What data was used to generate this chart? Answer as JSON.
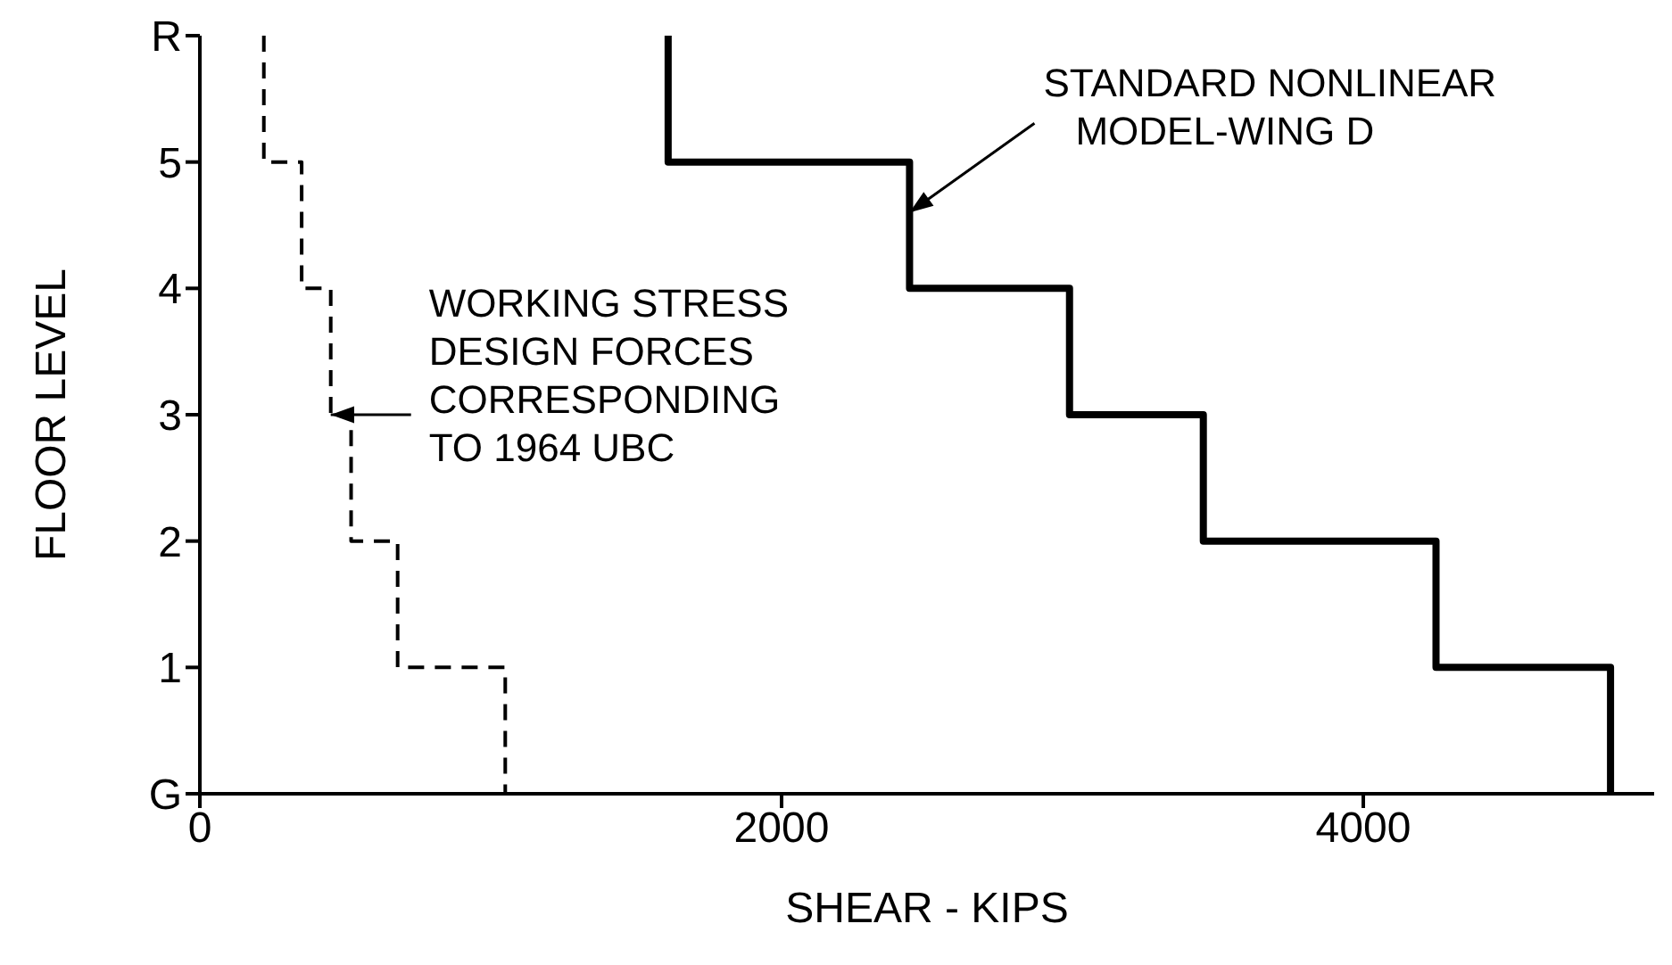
{
  "chart_data": {
    "type": "line",
    "xlabel": "SHEAR - KIPS",
    "ylabel": "FLOOR LEVEL",
    "xlim": [
      0,
      5000
    ],
    "xticks": [
      0,
      2000,
      4000
    ],
    "ylim": [
      0,
      6
    ],
    "yticks": [
      {
        "value": 0,
        "label": "G"
      },
      1,
      2,
      3,
      4,
      5,
      {
        "value": 6,
        "label": "R"
      }
    ],
    "marker": "none",
    "series": [
      {
        "color": "#000000",
        "line_style": "solid",
        "x": [
          1610,
          1610,
          2440,
          2440,
          2990,
          2990,
          3450,
          3450,
          4250,
          4250,
          4850,
          4850
        ],
        "values": [
          6,
          5,
          5,
          4,
          4,
          3,
          3,
          2,
          2,
          1,
          1,
          0
        ]
      },
      {
        "color": "#000000",
        "line_style": "dashed",
        "x": [
          220,
          220,
          350,
          350,
          450,
          450,
          520,
          520,
          680,
          680,
          1050,
          1050
        ],
        "values": [
          6,
          5,
          5,
          4,
          4,
          3,
          3,
          2,
          2,
          1,
          1,
          0
        ]
      }
    ],
    "annotations": [
      {
        "text": "STANDARD NONLINEAR\nMODEL-WING D",
        "x": 2440,
        "y": 4.6
      },
      {
        "text": "WORKING STRESS\nDESIGN FORCES\nCORRESPONDING\nTO 1964 UBC",
        "x": 450,
        "y": 3
      }
    ]
  }
}
